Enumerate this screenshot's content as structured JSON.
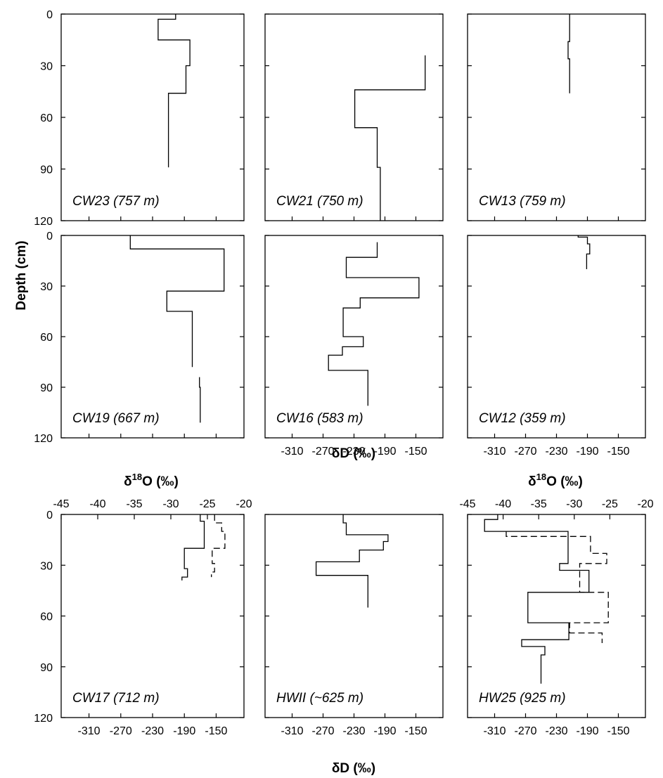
{
  "figure": {
    "y_axis_title": "Depth (cm)",
    "dD_axis_title": "δD (‰)",
    "d18O_axis_title_main": "δ",
    "d18O_axis_title_sup": "18",
    "d18O_axis_title_rest": "O (‰)"
  },
  "chart_data": [
    {
      "type": "line",
      "label": "CW23 (757 m)",
      "xlim": [
        -345,
        -115
      ],
      "ylim": [
        0,
        120
      ],
      "x_ticks": [],
      "y_ticks": [
        0,
        30,
        60,
        90,
        120
      ],
      "series": [
        {
          "style": "solid",
          "points": [
            [
              -201,
              0
            ],
            [
              -201,
              3
            ],
            [
              -223,
              3
            ],
            [
              -223,
              15
            ],
            [
              -183,
              15
            ],
            [
              -183,
              30
            ],
            [
              -188,
              30
            ],
            [
              -188,
              46
            ],
            [
              -210,
              46
            ],
            [
              -210,
              89
            ]
          ]
        }
      ]
    },
    {
      "type": "line",
      "label": "CW21 (750 m)",
      "xlim": [
        -345,
        -115
      ],
      "ylim": [
        0,
        120
      ],
      "x_ticks": [],
      "y_ticks": [
        0,
        30,
        60,
        90,
        120
      ],
      "series": [
        {
          "style": "solid",
          "points": [
            [
              -138,
              24
            ],
            [
              -138,
              44
            ],
            [
              -229,
              44
            ],
            [
              -229,
              66
            ],
            [
              -200,
              66
            ],
            [
              -200,
              89
            ],
            [
              -196,
              89
            ],
            [
              -196,
              120
            ]
          ]
        }
      ]
    },
    {
      "type": "line",
      "label": "CW13 (759 m)",
      "xlim": [
        -345,
        -115
      ],
      "ylim": [
        0,
        120
      ],
      "x_ticks": [],
      "y_ticks": [
        0,
        30,
        60,
        90,
        120
      ],
      "series": [
        {
          "style": "solid",
          "points": [
            [
              -213,
              0
            ],
            [
              -213,
              16
            ],
            [
              -215,
              16
            ],
            [
              -215,
              26
            ],
            [
              -213,
              26
            ],
            [
              -213,
              46
            ]
          ]
        }
      ]
    },
    {
      "type": "line",
      "label": "CW19 (667 m)",
      "xlim": [
        -345,
        -115
      ],
      "ylim": [
        0,
        120
      ],
      "x_ticks": [],
      "y_ticks": [
        0,
        30,
        60,
        90,
        120
      ],
      "series": [
        {
          "style": "solid",
          "points": [
            [
              -258,
              0
            ],
            [
              -258,
              8
            ],
            [
              -140,
              8
            ],
            [
              -140,
              33
            ],
            [
              -212,
              33
            ],
            [
              -212,
              45
            ],
            [
              -180,
              45
            ],
            [
              -180,
              78
            ]
          ]
        },
        {
          "style": "solid",
          "points": [
            [
              -171,
              84
            ],
            [
              -171,
              90
            ],
            [
              -170,
              90
            ],
            [
              -170,
              111
            ]
          ]
        }
      ]
    },
    {
      "type": "line",
      "label": "CW16 (583 m)",
      "xlim": [
        -345,
        -115
      ],
      "ylim": [
        0,
        120
      ],
      "x_ticks": [
        -310,
        -270,
        -230,
        -190,
        -150
      ],
      "y_ticks": [
        0,
        30,
        60,
        90,
        120
      ],
      "series": [
        {
          "style": "solid",
          "points": [
            [
              -200,
              4
            ],
            [
              -200,
              13
            ],
            [
              -240,
              13
            ],
            [
              -240,
              25
            ],
            [
              -146,
              25
            ],
            [
              -146,
              37
            ],
            [
              -222,
              37
            ],
            [
              -222,
              43
            ],
            [
              -244,
              43
            ],
            [
              -244,
              60
            ],
            [
              -218,
              60
            ],
            [
              -218,
              66
            ],
            [
              -245,
              66
            ],
            [
              -245,
              71
            ],
            [
              -263,
              71
            ],
            [
              -263,
              80
            ],
            [
              -212,
              80
            ],
            [
              -212,
              101
            ]
          ]
        }
      ]
    },
    {
      "type": "line",
      "label": "CW12 (359 m)",
      "xlim": [
        -345,
        -115
      ],
      "ylim": [
        0,
        120
      ],
      "x_ticks": [
        -310,
        -270,
        -230,
        -190,
        -150
      ],
      "y_ticks": [
        0,
        30,
        60,
        90,
        120
      ],
      "series": [
        {
          "style": "solid",
          "points": [
            [
              -202,
              0
            ],
            [
              -202,
              1
            ],
            [
              -190,
              1
            ],
            [
              -190,
              5
            ],
            [
              -187,
              5
            ],
            [
              -187,
              11
            ],
            [
              -191,
              11
            ],
            [
              -191,
              20
            ]
          ]
        }
      ]
    },
    {
      "type": "line",
      "label": "CW17 (712 m)",
      "xlim": [
        -345,
        -115
      ],
      "ylim": [
        0,
        120
      ],
      "x_ticks": [
        -310,
        -270,
        -230,
        -190,
        -150
      ],
      "y_ticks": [
        0,
        30,
        60,
        90,
        120
      ],
      "top_axis": {
        "ticks": [
          -45,
          -40,
          -35,
          -30,
          -25,
          -20
        ]
      },
      "series": [
        {
          "style": "solid",
          "points": [
            [
              -170,
              0
            ],
            [
              -170,
              4
            ],
            [
              -165,
              4
            ],
            [
              -165,
              20
            ],
            [
              -190,
              20
            ],
            [
              -190,
              32
            ],
            [
              -186,
              32
            ],
            [
              -186,
              37
            ],
            [
              -193,
              37
            ],
            [
              -193,
              39
            ]
          ]
        },
        {
          "style": "dashed",
          "points": [
            [
              -152,
              0
            ],
            [
              -152,
              5
            ],
            [
              -143,
              5
            ],
            [
              -143,
              10
            ],
            [
              -139,
              10
            ],
            [
              -139,
              20
            ],
            [
              -155,
              20
            ],
            [
              -155,
              29
            ],
            [
              -152,
              29
            ],
            [
              -152,
              34
            ],
            [
              -156,
              34
            ],
            [
              -156,
              37
            ]
          ]
        }
      ]
    },
    {
      "type": "line",
      "label": "HWII (~625 m)",
      "xlim": [
        -345,
        -115
      ],
      "ylim": [
        0,
        120
      ],
      "x_ticks": [
        -310,
        -270,
        -230,
        -190,
        -150
      ],
      "y_ticks": [
        0,
        30,
        60,
        90,
        120
      ],
      "series": [
        {
          "style": "solid",
          "points": [
            [
              -244,
              0
            ],
            [
              -244,
              5
            ],
            [
              -240,
              5
            ],
            [
              -240,
              12
            ],
            [
              -186,
              12
            ],
            [
              -186,
              16
            ],
            [
              -192,
              16
            ],
            [
              -192,
              21
            ],
            [
              -223,
              21
            ],
            [
              -223,
              28
            ],
            [
              -279,
              28
            ],
            [
              -279,
              36
            ],
            [
              -212,
              36
            ],
            [
              -212,
              55
            ]
          ]
        }
      ]
    },
    {
      "type": "line",
      "label": "HW25 (925 m)",
      "xlim": [
        -345,
        -115
      ],
      "ylim": [
        0,
        120
      ],
      "x_ticks": [
        -310,
        -270,
        -230,
        -190,
        -150
      ],
      "y_ticks": [
        0,
        30,
        60,
        90,
        120
      ],
      "top_axis": {
        "ticks": [
          -45,
          -40,
          -35,
          -30,
          -25,
          -20
        ]
      },
      "series": [
        {
          "style": "solid",
          "points": [
            [
              -306,
              0
            ],
            [
              -306,
              3
            ],
            [
              -323,
              3
            ],
            [
              -323,
              10
            ],
            [
              -215,
              10
            ],
            [
              -215,
              29
            ],
            [
              -226,
              29
            ],
            [
              -226,
              33
            ],
            [
              -188,
              33
            ],
            [
              -188,
              46
            ],
            [
              -267,
              46
            ],
            [
              -267,
              64
            ],
            [
              -214,
              64
            ],
            [
              -214,
              74
            ],
            [
              -275,
              74
            ],
            [
              -275,
              78
            ],
            [
              -245,
              78
            ],
            [
              -245,
              83
            ],
            [
              -250,
              83
            ],
            [
              -250,
              100
            ]
          ]
        },
        {
          "style": "dashed",
          "points": [
            [
              -295,
              10
            ],
            [
              -295,
              13
            ],
            [
              -186,
              13
            ],
            [
              -186,
              23
            ],
            [
              -165,
              23
            ],
            [
              -165,
              29
            ],
            [
              -200,
              29
            ],
            [
              -200,
              46
            ],
            [
              -163,
              46
            ],
            [
              -163,
              64
            ],
            [
              -213,
              64
            ],
            [
              -213,
              70
            ],
            [
              -171,
              70
            ],
            [
              -171,
              76
            ]
          ]
        }
      ]
    }
  ]
}
